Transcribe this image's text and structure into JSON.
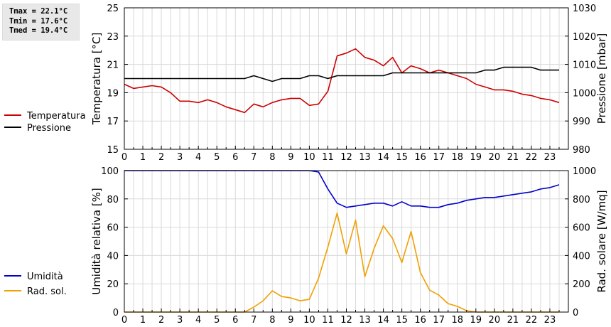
{
  "stats": {
    "tmax": "Tmax = 22.1°C",
    "tmin": "Tmin = 17.6°C",
    "tmed": "Tmed = 19.4°C"
  },
  "chart_data": [
    {
      "type": "line",
      "xlabel": "",
      "ylabel": "Temperatura [°C]",
      "ylabel_right": "Pressione [mbar]",
      "xlim": [
        0,
        24
      ],
      "x_ticks": [
        "0",
        "1",
        "2",
        "3",
        "4",
        "5",
        "6",
        "7",
        "8",
        "9",
        "10",
        "11",
        "12",
        "13",
        "14",
        "15",
        "16",
        "17",
        "18",
        "19",
        "20",
        "21",
        "22",
        "23"
      ],
      "ylim": [
        15,
        25
      ],
      "y_ticks": [
        "15",
        "17",
        "19",
        "21",
        "23",
        "25"
      ],
      "ylim_right": [
        980,
        1030
      ],
      "y_ticks_right": [
        "980",
        "990",
        "1000",
        "1010",
        "1020",
        "1030"
      ],
      "grid": true,
      "legend_position": "left",
      "series": [
        {
          "name": "Temperatura",
          "color": "#cc0000",
          "axis": "left",
          "x": [
            0,
            0.5,
            1,
            1.5,
            2,
            2.5,
            3,
            3.5,
            4,
            4.5,
            5,
            5.5,
            6,
            6.5,
            7,
            7.5,
            8,
            8.5,
            9,
            9.5,
            10,
            10.5,
            11,
            11.5,
            12,
            12.5,
            13,
            13.5,
            14,
            14.5,
            15,
            15.5,
            16,
            16.5,
            17,
            17.5,
            18,
            18.5,
            19,
            19.5,
            20,
            20.5,
            21,
            21.5,
            22,
            22.5,
            23,
            23.5
          ],
          "values": [
            19.6,
            19.3,
            19.4,
            19.5,
            19.4,
            19.0,
            18.4,
            18.4,
            18.3,
            18.5,
            18.3,
            18.0,
            17.8,
            17.6,
            18.2,
            18.0,
            18.3,
            18.5,
            18.6,
            18.6,
            18.1,
            18.2,
            19.1,
            21.6,
            21.8,
            22.1,
            21.5,
            21.3,
            20.9,
            21.5,
            20.4,
            20.9,
            20.7,
            20.4,
            20.6,
            20.4,
            20.2,
            20.0,
            19.6,
            19.4,
            19.2,
            19.2,
            19.1,
            18.9,
            18.8,
            18.6,
            18.5,
            18.3
          ]
        },
        {
          "name": "Pressione",
          "color": "#000000",
          "axis": "right",
          "x": [
            0,
            0.5,
            1,
            1.5,
            2,
            2.5,
            3,
            3.5,
            4,
            4.5,
            5,
            5.5,
            6,
            6.5,
            7,
            7.5,
            8,
            8.5,
            9,
            9.5,
            10,
            10.5,
            11,
            11.5,
            12,
            12.5,
            13,
            13.5,
            14,
            14.5,
            15,
            15.5,
            16,
            16.5,
            17,
            17.5,
            18,
            18.5,
            19,
            19.5,
            20,
            20.5,
            21,
            21.5,
            22,
            22.5,
            23,
            23.5
          ],
          "values": [
            1005,
            1005,
            1005,
            1005,
            1005,
            1005,
            1005,
            1005,
            1005,
            1005,
            1005,
            1005,
            1005,
            1005,
            1006,
            1005,
            1004,
            1005,
            1005,
            1005,
            1006,
            1006,
            1005,
            1006,
            1006,
            1006,
            1006,
            1006,
            1006,
            1007,
            1007,
            1007,
            1007,
            1007,
            1007,
            1007,
            1007,
            1007,
            1007,
            1008,
            1008,
            1009,
            1009,
            1009,
            1009,
            1008,
            1008,
            1008
          ]
        }
      ]
    },
    {
      "type": "line",
      "xlabel": "",
      "ylabel": "Umidità relativa [%]",
      "ylabel_right": "Rad. solare [W/mq]",
      "xlim": [
        0,
        24
      ],
      "x_ticks": [
        "0",
        "1",
        "2",
        "3",
        "4",
        "5",
        "6",
        "7",
        "8",
        "9",
        "10",
        "11",
        "12",
        "13",
        "14",
        "15",
        "16",
        "17",
        "18",
        "19",
        "20",
        "21",
        "22",
        "23"
      ],
      "ylim": [
        0,
        100
      ],
      "y_ticks": [
        "0",
        "20",
        "40",
        "60",
        "80",
        "100"
      ],
      "ylim_right": [
        0,
        1000
      ],
      "y_ticks_right": [
        "0",
        "200",
        "400",
        "600",
        "800",
        "1000"
      ],
      "grid": true,
      "legend_position": "left",
      "series": [
        {
          "name": "Umidità",
          "color": "#0000cc",
          "axis": "left",
          "x": [
            0,
            0.5,
            1,
            1.5,
            2,
            2.5,
            3,
            3.5,
            4,
            4.5,
            5,
            5.5,
            6,
            6.5,
            7,
            7.5,
            8,
            8.5,
            9,
            9.5,
            10,
            10.5,
            11,
            11.5,
            12,
            12.5,
            13,
            13.5,
            14,
            14.5,
            15,
            15.5,
            16,
            16.5,
            17,
            17.5,
            18,
            18.5,
            19,
            19.5,
            20,
            20.5,
            21,
            21.5,
            22,
            22.5,
            23,
            23.5
          ],
          "values": [
            100,
            100,
            100,
            100,
            100,
            100,
            100,
            100,
            100,
            100,
            100,
            100,
            100,
            100,
            100,
            100,
            100,
            100,
            100,
            100,
            100,
            99,
            87,
            77,
            74,
            75,
            76,
            77,
            77,
            75,
            78,
            75,
            75,
            74,
            74,
            76,
            77,
            79,
            80,
            81,
            81,
            82,
            83,
            84,
            85,
            87,
            88,
            90
          ]
        },
        {
          "name": "Rad. sol.",
          "color": "#f0a000",
          "axis": "right",
          "x": [
            0,
            0.5,
            1,
            1.5,
            2,
            2.5,
            3,
            3.5,
            4,
            4.5,
            5,
            5.5,
            6,
            6.5,
            7,
            7.5,
            8,
            8.5,
            9,
            9.5,
            10,
            10.5,
            11,
            11.5,
            12,
            12.5,
            13,
            13.5,
            14,
            14.5,
            15,
            15.5,
            16,
            16.5,
            17,
            17.5,
            18,
            18.5,
            19,
            19.5,
            20,
            20.5,
            21,
            21.5,
            22,
            22.5,
            23,
            23.5
          ],
          "values": [
            0,
            0,
            0,
            0,
            0,
            0,
            0,
            0,
            0,
            0,
            0,
            0,
            0,
            0,
            35,
            80,
            150,
            110,
            100,
            80,
            90,
            240,
            460,
            700,
            410,
            650,
            250,
            450,
            610,
            520,
            350,
            570,
            280,
            155,
            120,
            60,
            40,
            10,
            0,
            0,
            0,
            0,
            0,
            0,
            0,
            0,
            0,
            0
          ]
        }
      ]
    }
  ]
}
